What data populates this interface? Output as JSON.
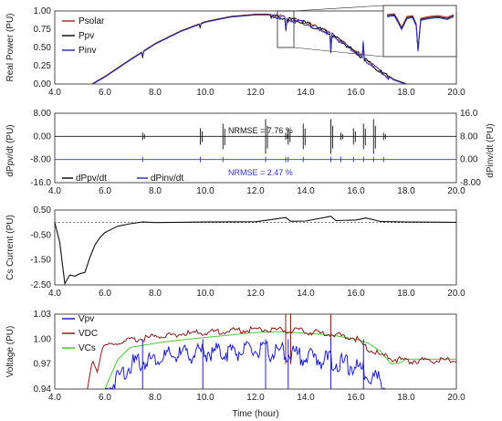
{
  "xlabel": "Time (hour)",
  "chart_data": [
    {
      "type": "line",
      "ylabel": "Real Power  (PU)",
      "ylim": [
        0,
        1.0
      ],
      "yticks": [
        "0.00",
        "0.25",
        "0.50",
        "0.75",
        "1.00"
      ],
      "xlim": [
        4.0,
        20.0
      ],
      "xticks": [
        "4.0",
        "6.0",
        "8.0",
        "10.0",
        "12.0",
        "14.0",
        "16.0",
        "18.0",
        "20.0"
      ],
      "legend_position": "top-left",
      "series": [
        {
          "name": "Psolar",
          "color": "#b0302a"
        },
        {
          "name": "Ppv",
          "color": "#111111"
        },
        {
          "name": "Pinv",
          "color": "#3333cc"
        }
      ],
      "x": [
        5.5,
        6.0,
        7.0,
        8.0,
        9.0,
        10.0,
        11.0,
        12.0,
        12.5,
        13.0,
        14.0,
        15.0,
        16.0,
        17.0,
        17.5,
        18.0
      ],
      "values": [
        0.0,
        0.1,
        0.33,
        0.55,
        0.72,
        0.85,
        0.92,
        0.95,
        0.95,
        0.93,
        0.85,
        0.7,
        0.45,
        0.18,
        0.06,
        0.0
      ],
      "dips": [
        {
          "x": 7.5,
          "y": 0.35
        },
        {
          "x": 9.8,
          "y": 0.76
        },
        {
          "x": 13.2,
          "y": 0.72
        },
        {
          "x": 13.3,
          "y": 0.84
        },
        {
          "x": 15.0,
          "y": 0.42
        },
        {
          "x": 16.3,
          "y": 0.55
        }
      ],
      "inset": "zoom of 13.0–13.6 h"
    },
    {
      "type": "line",
      "ylabel": "dPpv/dt  (PU)",
      "ylabel_right": "dPinv/dt  (PU)",
      "yticks": [
        "8.00",
        "0.00",
        "-8.00",
        "-16.0"
      ],
      "yticks_right": [
        "16.0",
        "8.00",
        "0.00",
        "-8.00"
      ],
      "xlim": [
        4.0,
        20.0
      ],
      "xticks": [
        "4.0",
        "6.0",
        "8.0",
        "10.0",
        "12.0",
        "14.0",
        "16.0",
        "18.0",
        "20.0"
      ],
      "legend_position": "bottom-left",
      "series": [
        {
          "name": "dPpv/dt",
          "color": "#111111"
        },
        {
          "name": "dPinv/dt",
          "color": "#3333cc"
        }
      ],
      "annotations": [
        "NRMSE = 7.76 %",
        "NRMSE = 2.47 %"
      ],
      "spikes_x": [
        7.5,
        9.8,
        10.7,
        12.4,
        13.2,
        13.3,
        13.9,
        15.0,
        15.4,
        15.9,
        16.3,
        16.7,
        17.1
      ]
    },
    {
      "type": "line",
      "ylabel": "Cs Current  (PU)",
      "ylim": [
        -2.5,
        0.5
      ],
      "yticks": [
        "0.50",
        "-0.50",
        "-1.50",
        "-2.50"
      ],
      "xlim": [
        4.0,
        20.0
      ],
      "xticks": [
        "4.0",
        "6.0",
        "8.0",
        "10.0",
        "12.0",
        "14.0",
        "16.0",
        "18.0",
        "20.0"
      ],
      "x": [
        4.0,
        4.2,
        4.4,
        4.6,
        4.8,
        5.0,
        5.2,
        5.4,
        5.6,
        5.8,
        6.0,
        6.5,
        7.0,
        7.5,
        8.0,
        9.0,
        10.0,
        12.0,
        13.2,
        13.4,
        14.0,
        15.0,
        15.2,
        16.0,
        16.4,
        17.0,
        18.0,
        20.0
      ],
      "values": [
        0.0,
        -0.8,
        -2.45,
        -2.1,
        -2.15,
        -2.05,
        -2.0,
        -1.4,
        -0.9,
        -0.6,
        -0.4,
        -0.15,
        -0.05,
        0.02,
        0.0,
        0.01,
        0.02,
        0.03,
        0.2,
        0.05,
        0.06,
        0.25,
        0.08,
        0.1,
        0.18,
        0.04,
        0.02,
        0.01
      ]
    },
    {
      "type": "line",
      "ylabel": "Voltage  (PU)",
      "ylim": [
        0.94,
        1.03
      ],
      "yticks": [
        "1.03",
        "1.00",
        "0.97",
        "0.94"
      ],
      "xlim": [
        4.0,
        20.0
      ],
      "xticks": [
        "4.0",
        "6.0",
        "8.0",
        "10.0",
        "12.0",
        "14.0",
        "16.0",
        "18.0",
        "20.0"
      ],
      "legend_position": "top-left",
      "series": [
        {
          "name": "Vpv",
          "color": "#2020c8",
          "x": [
            6.0,
            6.5,
            7.0,
            8.0,
            9.0,
            10.0,
            11.0,
            12.0,
            13.0,
            14.0,
            15.0,
            16.0,
            16.5,
            17.0,
            17.2
          ],
          "values": [
            0.94,
            0.96,
            0.975,
            0.983,
            0.987,
            0.99,
            0.991,
            0.992,
            0.99,
            0.985,
            0.98,
            0.972,
            0.965,
            0.955,
            0.945
          ]
        },
        {
          "name": "VDC",
          "color": "#8b1a1a",
          "x": [
            5.3,
            5.5,
            5.7,
            5.9,
            6.0,
            6.5,
            7.0,
            8.0,
            9.0,
            10.0,
            11.0,
            12.0,
            13.0,
            14.0,
            15.0,
            16.0,
            16.5,
            17.0,
            17.5,
            18.0,
            19.0,
            20.0
          ],
          "values": [
            0.94,
            0.975,
            0.96,
            0.99,
            0.993,
            0.997,
            1.0,
            1.005,
            1.008,
            1.01,
            1.012,
            1.014,
            1.013,
            1.011,
            1.008,
            1.003,
            0.99,
            0.982,
            0.978,
            0.976,
            0.976,
            0.976
          ]
        },
        {
          "name": "VCs",
          "color": "#44cc33",
          "x": [
            6.0,
            6.5,
            7.0,
            8.0,
            9.0,
            10.0,
            11.0,
            12.0,
            13.0,
            14.0,
            15.0,
            16.0,
            16.5,
            17.0,
            17.4,
            17.8,
            18.0,
            19.0,
            20.0
          ],
          "values": [
            0.94,
            0.975,
            0.99,
            0.995,
            0.999,
            1.002,
            1.005,
            1.008,
            1.009,
            1.007,
            1.005,
            1.0,
            0.995,
            0.985,
            0.97,
            0.972,
            0.976,
            0.976,
            0.976
          ]
        }
      ]
    }
  ]
}
